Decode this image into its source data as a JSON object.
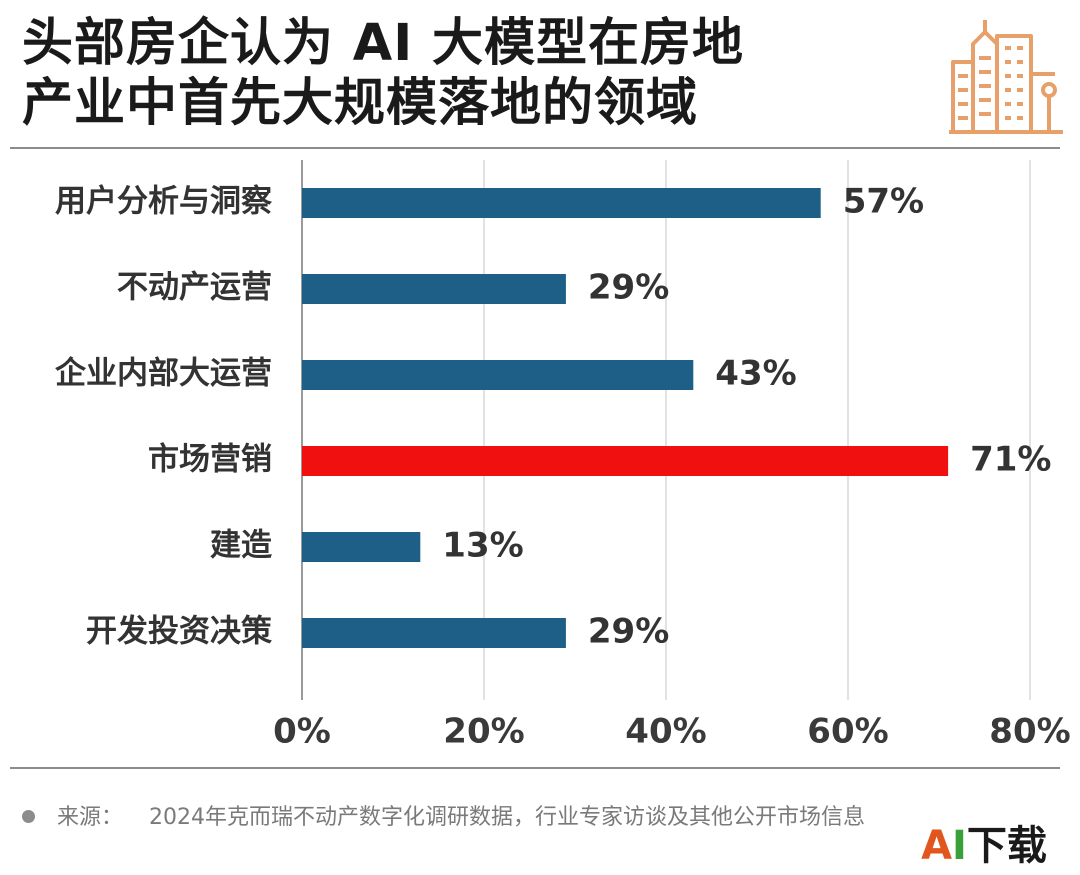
{
  "title": {
    "line1": "头部房企认为 AI 大模型在房地",
    "line2": "产业中首先大规模落地的领域"
  },
  "icon": "city-buildings-icon",
  "accent_color": "#e8a06a",
  "chart_data": {
    "type": "bar",
    "orientation": "horizontal",
    "categories": [
      "用户分析与洞察",
      "不动产运营",
      "企业内部大运营",
      "市场营销",
      "建造",
      "开发投资决策"
    ],
    "values": [
      57,
      29,
      43,
      71,
      13,
      29
    ],
    "value_labels": [
      "57%",
      "29%",
      "43%",
      "71%",
      "13%",
      "29%"
    ],
    "highlight_index": 3,
    "colors": {
      "default": "#1d5f86",
      "highlight": "#f01010",
      "grid": "#d9d9d9",
      "label": "#333333"
    },
    "xlim": [
      0,
      80
    ],
    "x_ticks": [
      0,
      20,
      40,
      60,
      80
    ],
    "x_tick_labels": [
      "0%",
      "20%",
      "40%",
      "60%",
      "80%"
    ],
    "xlabel": "",
    "ylabel": "",
    "grid": true
  },
  "source": {
    "label": "来源：",
    "text": "2024年克而瑞不动产数字化调研数据，行业专家访谈及其他公开市场信息"
  },
  "badge": {
    "a": "A",
    "i": "I",
    "rest": "下载"
  }
}
